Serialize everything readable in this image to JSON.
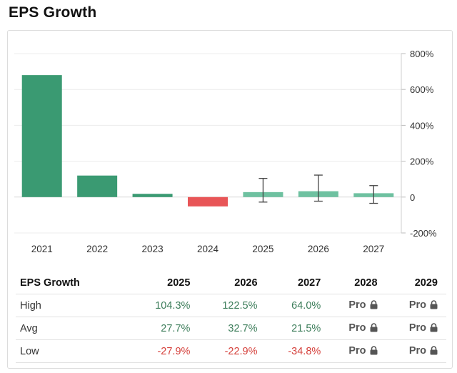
{
  "title": "EPS Growth",
  "colors": {
    "positive": "#3a9a72",
    "negative": "#e85557",
    "estimate": "#6ec1a0",
    "grid": "#ececec"
  },
  "chart_data": {
    "type": "bar",
    "categories": [
      "2021",
      "2022",
      "2023",
      "2024",
      "2025",
      "2026",
      "2027"
    ],
    "values": [
      680,
      120,
      18,
      -52,
      27.7,
      32.7,
      21.5
    ],
    "error_bars": [
      null,
      null,
      null,
      null,
      [
        -27.9,
        104.3
      ],
      [
        -22.9,
        122.5
      ],
      [
        -34.8,
        64.0
      ]
    ],
    "y_ticks": [
      "800%",
      "600%",
      "400%",
      "200%",
      "0",
      "-200%"
    ],
    "y_tick_values": [
      800,
      600,
      400,
      200,
      0,
      -200
    ],
    "ylim": [
      -200,
      800
    ],
    "grid": true,
    "y_axis_position": "right"
  },
  "table": {
    "header": [
      "EPS Growth",
      "2025",
      "2026",
      "2027",
      "2028",
      "2029"
    ],
    "rows": [
      {
        "label": "High",
        "cells": [
          "104.3%",
          "122.5%",
          "64.0%",
          "Pro",
          "Pro"
        ]
      },
      {
        "label": "Avg",
        "cells": [
          "27.7%",
          "32.7%",
          "21.5%",
          "Pro",
          "Pro"
        ]
      },
      {
        "label": "Low",
        "cells": [
          "-27.9%",
          "-22.9%",
          "-34.8%",
          "Pro",
          "Pro"
        ]
      }
    ]
  }
}
